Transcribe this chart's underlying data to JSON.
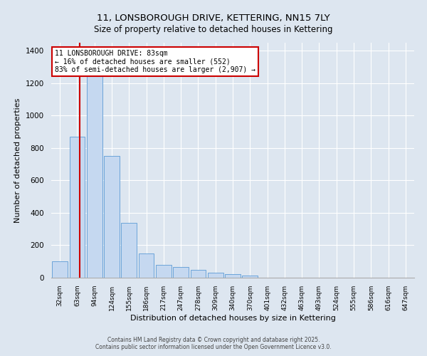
{
  "title": "11, LONSBOROUGH DRIVE, KETTERING, NN15 7LY",
  "subtitle": "Size of property relative to detached houses in Kettering",
  "xlabel": "Distribution of detached houses by size in Kettering",
  "ylabel": "Number of detached properties",
  "bin_labels": [
    "32sqm",
    "63sqm",
    "94sqm",
    "124sqm",
    "155sqm",
    "186sqm",
    "217sqm",
    "247sqm",
    "278sqm",
    "309sqm",
    "340sqm",
    "370sqm",
    "401sqm",
    "432sqm",
    "463sqm",
    "493sqm",
    "524sqm",
    "555sqm",
    "586sqm",
    "616sqm",
    "647sqm"
  ],
  "bar_values": [
    100,
    870,
    1270,
    750,
    340,
    150,
    80,
    65,
    50,
    30,
    20,
    15,
    0,
    0,
    0,
    0,
    0,
    0,
    0,
    0,
    0
  ],
  "bar_color": "#c5d8f0",
  "bar_edgecolor": "#5b9bd5",
  "bar_alpha": 1.0,
  "annotation_title": "11 LONSBOROUGH DRIVE: 83sqm",
  "annotation_line1": "← 16% of detached houses are smaller (552)",
  "annotation_line2": "83% of semi-detached houses are larger (2,907) →",
  "annotation_box_facecolor": "#ffffff",
  "annotation_box_edgecolor": "#cc0000",
  "vline_color": "#cc0000",
  "ylim": [
    0,
    1450
  ],
  "yticks": [
    0,
    200,
    400,
    600,
    800,
    1000,
    1200,
    1400
  ],
  "footer1": "Contains HM Land Registry data © Crown copyright and database right 2025.",
  "footer2": "Contains public sector information licensed under the Open Government Licence v3.0.",
  "bg_color": "#dde6f0",
  "plot_bg_color": "#dde6f0",
  "grid_color": "#ffffff",
  "title_fontsize": 9.5,
  "subtitle_fontsize": 8.5
}
